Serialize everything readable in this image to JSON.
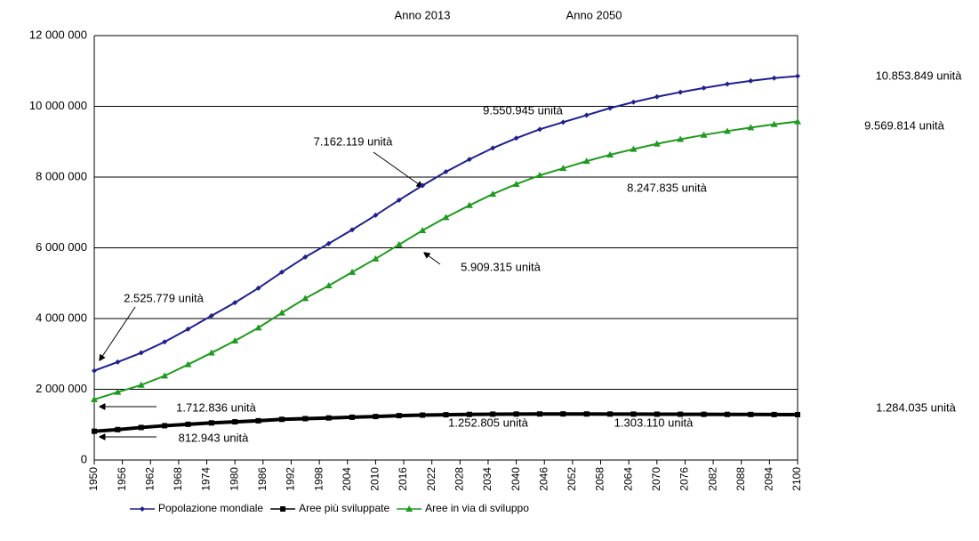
{
  "chart_data": {
    "type": "line",
    "x": [
      1950,
      1955,
      1960,
      1965,
      1970,
      1975,
      1980,
      1985,
      1990,
      1995,
      2000,
      2005,
      2010,
      2015,
      2020,
      2025,
      2030,
      2035,
      2040,
      2045,
      2050,
      2055,
      2060,
      2065,
      2070,
      2075,
      2080,
      2085,
      2090,
      2095,
      2100
    ],
    "series": [
      {
        "name": "Popolazione mondiale",
        "color": "#1f1f8f",
        "marker": "diamond",
        "values": [
          2525779,
          2770000,
          3030000,
          3340000,
          3700000,
          4080000,
          4450000,
          4860000,
          5310000,
          5740000,
          6120000,
          6510000,
          6920000,
          7350000,
          7760000,
          8150000,
          8500000,
          8820000,
          9100000,
          9350000,
          9550945,
          9750000,
          9950000,
          10120000,
          10270000,
          10400000,
          10520000,
          10630000,
          10720000,
          10800000,
          10853849
        ]
      },
      {
        "name": "Aree più sviluppate",
        "color": "#000000",
        "marker": "square",
        "values": [
          812943,
          860000,
          920000,
          970000,
          1010000,
          1050000,
          1080000,
          1110000,
          1150000,
          1170000,
          1190000,
          1210000,
          1230000,
          1255000,
          1270000,
          1280000,
          1290000,
          1297000,
          1300000,
          1302000,
          1303110,
          1302000,
          1300000,
          1298000,
          1296000,
          1294000,
          1292000,
          1290000,
          1288000,
          1286000,
          1284035
        ]
      },
      {
        "name": "Aree in via di sviluppo",
        "color": "#1e9a1e",
        "marker": "triangle",
        "values": [
          1712836,
          1920000,
          2120000,
          2380000,
          2700000,
          3030000,
          3370000,
          3740000,
          4160000,
          4570000,
          4930000,
          5310000,
          5690000,
          6090000,
          6490000,
          6860000,
          7200000,
          7520000,
          7800000,
          8050000,
          8247835,
          8450000,
          8630000,
          8790000,
          8940000,
          9070000,
          9190000,
          9300000,
          9400000,
          9490000,
          9569814
        ]
      }
    ],
    "xlim": [
      1950,
      2100
    ],
    "xticks": [
      1950,
      1956,
      1962,
      1968,
      1974,
      1980,
      1986,
      1992,
      1998,
      2004,
      2010,
      2016,
      2022,
      2028,
      2034,
      2040,
      2046,
      2052,
      2058,
      2064,
      2070,
      2076,
      2082,
      2088,
      2094,
      2100
    ],
    "ylim": [
      0,
      12000000
    ],
    "yticks": [
      0,
      {
        "value": 2000000,
        "label": "2 000 000"
      },
      {
        "value": 4000000,
        "label": "4 000 000"
      },
      {
        "value": 6000000,
        "label": "6 000 000"
      },
      {
        "value": 8000000,
        "label": "8 000 000"
      },
      {
        "value": 10000000,
        "label": "10 000 000"
      },
      {
        "value": 12000000,
        "label": "12 000 000"
      }
    ],
    "grid": true,
    "legend": "bottom",
    "annotations": [
      "Anno 2013",
      "Anno 2050",
      "10.853.849 unità",
      "9.569.814 unità",
      "1.284.035 unità",
      "9.550.945 unità",
      "7.162.119 unità",
      "8.247.835 unità",
      "5.909.315 unità",
      "2.525.779 unità",
      "1.712.836 unità",
      "812.943 unità",
      "1.252.805 unità",
      "1.303.110 unità"
    ]
  }
}
